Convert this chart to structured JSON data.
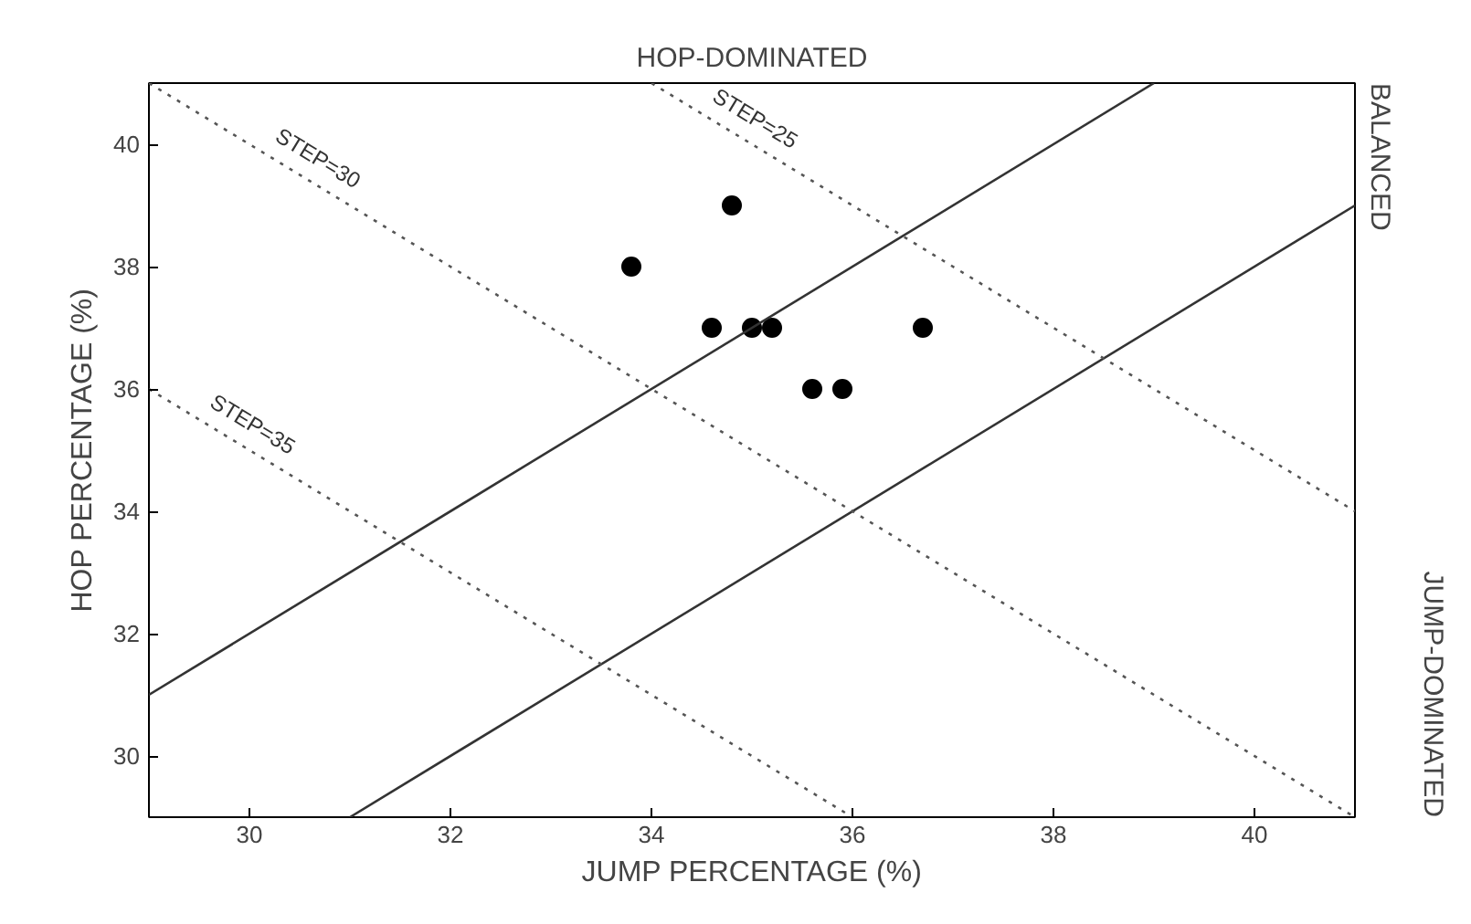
{
  "chart_data": {
    "type": "scatter",
    "title": "HOP-DOMINATED",
    "xlabel": "JUMP PERCENTAGE (%)",
    "ylabel": "HOP PERCENTAGE (%)",
    "xlim": [
      29,
      41
    ],
    "ylim": [
      29,
      41
    ],
    "xticks": [
      30,
      32,
      34,
      36,
      38,
      40
    ],
    "yticks": [
      30,
      32,
      34,
      36,
      38,
      40
    ],
    "grid": false,
    "marker": "circle",
    "annotations": [
      "BALANCED",
      "JUMP-DOMINATED"
    ],
    "series": [
      {
        "color": "#000000",
        "x": [
          33.8,
          34.8,
          34.6,
          35.0,
          35.2,
          36.7,
          35.6,
          35.9
        ],
        "values": [
          38,
          39,
          37,
          37,
          37,
          37,
          36,
          36
        ]
      },
      {
        "type": "line",
        "color": "#333333",
        "line_style": "solid",
        "marker": "none",
        "x": [
          29,
          39
        ],
        "values": [
          31,
          41
        ]
      },
      {
        "type": "line",
        "color": "#333333",
        "line_style": "solid",
        "marker": "none",
        "x": [
          31,
          41
        ],
        "values": [
          29,
          39
        ]
      },
      {
        "type": "line",
        "name": "STEP=25",
        "color": "#555555",
        "line_style": "dotted",
        "marker": "none",
        "x": [
          34,
          41
        ],
        "values": [
          41,
          34
        ]
      },
      {
        "type": "line",
        "name": "STEP=30",
        "color": "#555555",
        "line_style": "dotted",
        "marker": "none",
        "x": [
          29,
          41
        ],
        "values": [
          41,
          29
        ]
      },
      {
        "type": "line",
        "name": "STEP=35",
        "color": "#555555",
        "line_style": "dotted",
        "marker": "none",
        "x": [
          29,
          36
        ],
        "values": [
          36,
          29
        ]
      }
    ]
  }
}
